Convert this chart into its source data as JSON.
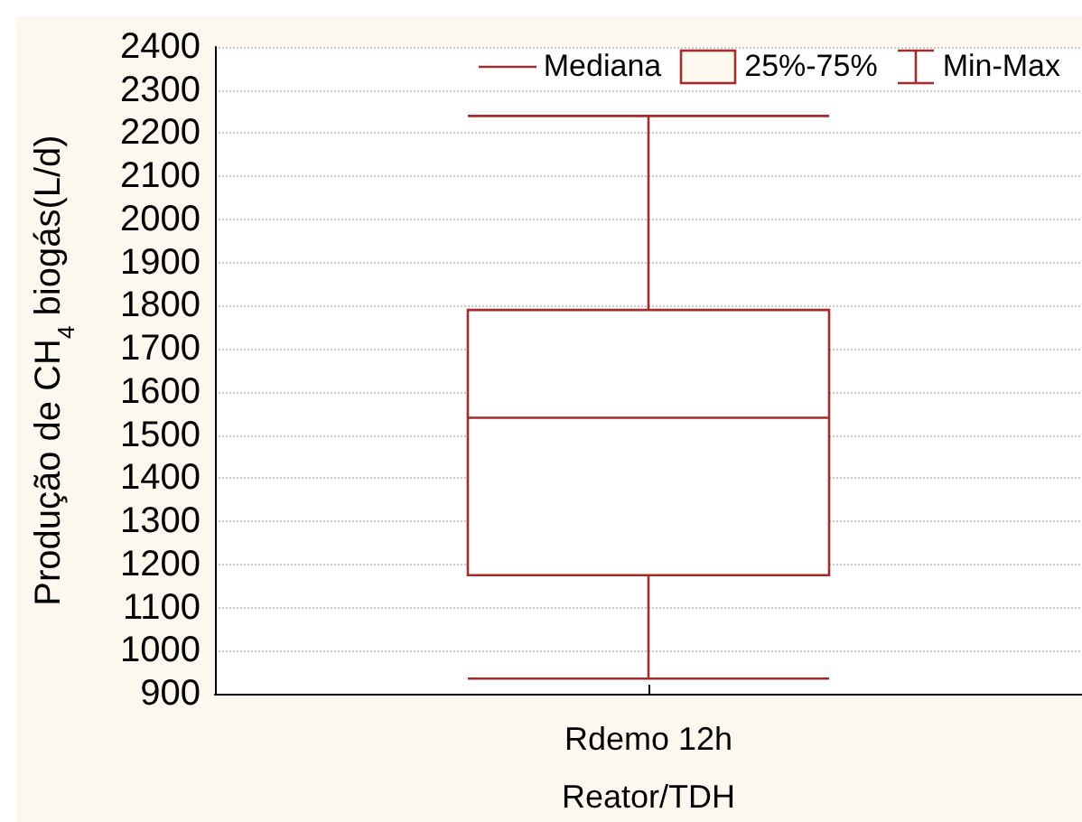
{
  "chart_data": {
    "type": "box",
    "xlabel": "Reator/TDH",
    "ylabel": "Produção de CH$_{4}$ biogás(L/d)",
    "categories": [
      "Rdemo 12h"
    ],
    "boxes": [
      {
        "low": 935,
        "q1": 1175,
        "median": 1540,
        "q3": 1790,
        "high": 2240
      }
    ],
    "color": "#a52a2a",
    "annotations": [
      "Mediana",
      "25%-75%",
      "Min-Max"
    ],
    "ylim": [
      900,
      2400
    ],
    "yticks": [
      900,
      1000,
      1100,
      1200,
      1300,
      1400,
      1500,
      1600,
      1700,
      1800,
      1900,
      2000,
      2100,
      2200,
      2300,
      2400
    ],
    "grid": "y"
  }
}
